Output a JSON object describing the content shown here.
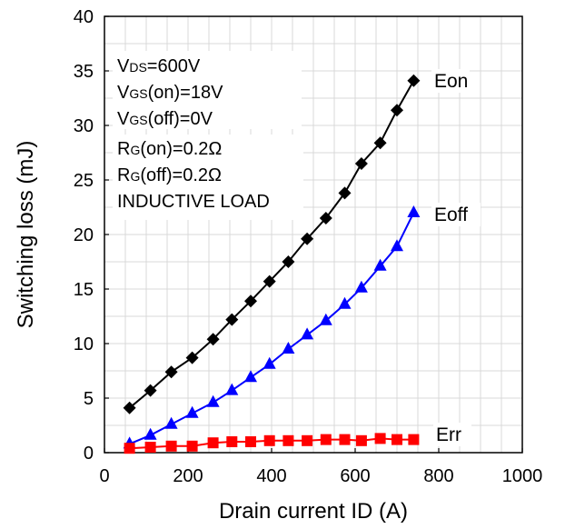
{
  "chart_data": {
    "type": "line",
    "title": "",
    "xlabel": "Drain current ID (A)",
    "ylabel": "Switching loss (mJ)",
    "xlim": [
      0,
      1000
    ],
    "ylim": [
      0,
      40
    ],
    "x_ticks": [
      "0",
      "200",
      "400",
      "600",
      "800",
      "1000"
    ],
    "y_ticks": [
      "0",
      "5",
      "10",
      "15",
      "20",
      "25",
      "30",
      "35",
      "40"
    ],
    "grid": true,
    "legend": "inline labels at line ends",
    "x": [
      60,
      110,
      160,
      210,
      260,
      305,
      350,
      395,
      440,
      485,
      530,
      575,
      615,
      660,
      700,
      740
    ],
    "series": [
      {
        "name": "Eon",
        "marker": "diamond",
        "color": "#000000",
        "values": [
          4.1,
          5.7,
          7.4,
          8.7,
          10.4,
          12.2,
          13.9,
          15.7,
          17.5,
          19.6,
          21.5,
          23.8,
          26.5,
          28.4,
          31.4,
          34.1
        ]
      },
      {
        "name": "Eoff",
        "marker": "triangle",
        "color": "#0000ff",
        "values": [
          0.8,
          1.6,
          2.6,
          3.6,
          4.6,
          5.7,
          6.9,
          8.1,
          9.5,
          10.8,
          12.1,
          13.6,
          15.1,
          17.1,
          18.9,
          22.0
        ]
      },
      {
        "name": "Err",
        "marker": "square",
        "color": "#ff0000",
        "values": [
          0.4,
          0.5,
          0.6,
          0.6,
          0.9,
          1.0,
          1.0,
          1.1,
          1.1,
          1.1,
          1.2,
          1.2,
          1.1,
          1.3,
          1.2,
          1.2
        ]
      }
    ],
    "conditions": [
      {
        "main": "V",
        "sub": "DS",
        "rest": "=600V"
      },
      {
        "main": "V",
        "sub": "GS",
        "rest": "(on)=18V"
      },
      {
        "main": "V",
        "sub": "GS",
        "rest": "(off)=0V"
      },
      {
        "main": "R",
        "sub": "G",
        "rest": "(on)=0.2Ω"
      },
      {
        "main": "R",
        "sub": "G",
        "rest": "(off)=0.2Ω"
      },
      {
        "main": "",
        "sub": "",
        "rest": "INDUCTIVE LOAD"
      }
    ]
  }
}
